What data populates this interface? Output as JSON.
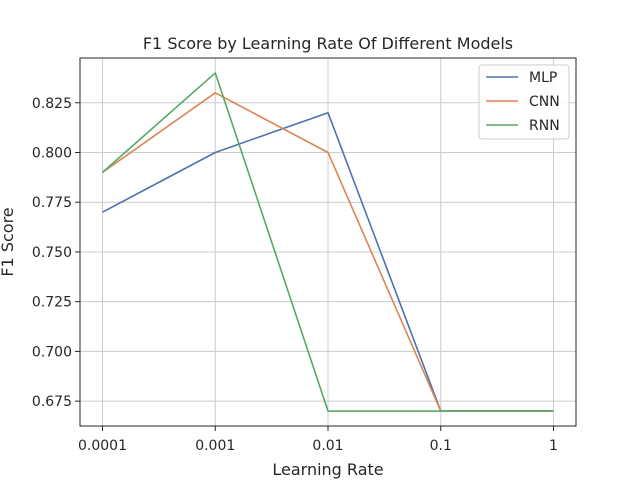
{
  "chart_data": {
    "type": "line",
    "title": "F1 Score by Learning Rate Of Different Models",
    "xlabel": "Learning Rate",
    "ylabel": "F1 Score",
    "categories": [
      "0.0001",
      "0.001",
      "0.01",
      "0.1",
      "1"
    ],
    "yticks": [
      "0.675",
      "0.700",
      "0.725",
      "0.750",
      "0.775",
      "0.800",
      "0.825"
    ],
    "ylim": [
      0.6625,
      0.8475
    ],
    "grid": true,
    "legend_position": "top-right",
    "series": [
      {
        "name": "MLP",
        "color": "#4c72b0",
        "values": [
          0.77,
          0.8,
          0.82,
          0.67,
          0.67
        ]
      },
      {
        "name": "CNN",
        "color": "#dd8452",
        "values": [
          0.79,
          0.83,
          0.8,
          0.67,
          0.67
        ]
      },
      {
        "name": "RNN",
        "color": "#55a868",
        "values": [
          0.79,
          0.84,
          0.67,
          0.67,
          0.67
        ]
      }
    ]
  }
}
